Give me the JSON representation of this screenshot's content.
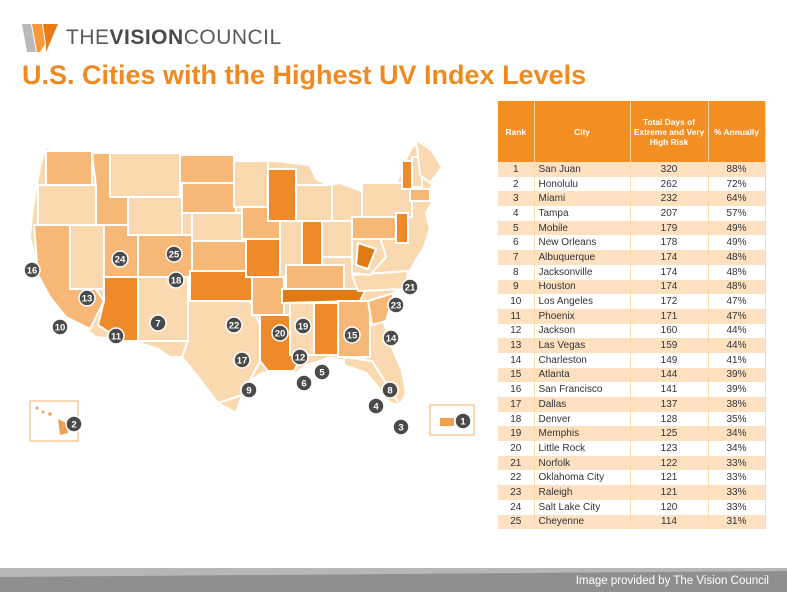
{
  "brand": {
    "prefix": "THE",
    "bold": "VISION",
    "suffix": "COUNCIL"
  },
  "title": "U.S. Cities with the Highest UV Index Levels",
  "credit": "Image provided by The Vision Council",
  "colors": {
    "accent": "#f08a1f",
    "header": "#f28e22",
    "row_band": "#fde1c0",
    "map_light": "#fbd9b0",
    "map_mid": "#f6b777",
    "map_dark": "#ef8a2a",
    "map_darkest": "#e07a14",
    "marker": "#4a4a4a",
    "footer": "#8f8f8f"
  },
  "chart_data": {
    "type": "table",
    "title": "U.S. Cities with the Highest UV Index Levels",
    "columns": [
      "Rank",
      "City",
      "Total Days of Extreme and Very High Risk",
      "% Annually"
    ],
    "rows": [
      [
        "1",
        "San Juan",
        "320",
        "88%"
      ],
      [
        "2",
        "Honolulu",
        "262",
        "72%"
      ],
      [
        "3",
        "Miami",
        "232",
        "64%"
      ],
      [
        "4",
        "Tampa",
        "207",
        "57%"
      ],
      [
        "5",
        "Mobile",
        "179",
        "49%"
      ],
      [
        "6",
        "New Orleans",
        "178",
        "49%"
      ],
      [
        "7",
        "Albuquerque",
        "174",
        "48%"
      ],
      [
        "8",
        "Jacksonville",
        "174",
        "48%"
      ],
      [
        "9",
        "Houston",
        "174",
        "48%"
      ],
      [
        "10",
        "Los Angeles",
        "172",
        "47%"
      ],
      [
        "11",
        "Phoenix",
        "171",
        "47%"
      ],
      [
        "12",
        "Jackson",
        "160",
        "44%"
      ],
      [
        "13",
        "Las Vegas",
        "159",
        "44%"
      ],
      [
        "14",
        "Charleston",
        "149",
        "41%"
      ],
      [
        "15",
        "Atlanta",
        "144",
        "39%"
      ],
      [
        "16",
        "San Francisco",
        "141",
        "39%"
      ],
      [
        "17",
        "Dallas",
        "137",
        "38%"
      ],
      [
        "18",
        "Denver",
        "128",
        "35%"
      ],
      [
        "19",
        "Memphis",
        "125",
        "34%"
      ],
      [
        "20",
        "Little Rock",
        "123",
        "34%"
      ],
      [
        "21",
        "Norfolk",
        "122",
        "33%"
      ],
      [
        "22",
        "Oklahoma City",
        "121",
        "33%"
      ],
      [
        "23",
        "Raleigh",
        "121",
        "33%"
      ],
      [
        "24",
        "Salt Lake City",
        "120",
        "33%"
      ],
      [
        "25",
        "Cheyenne",
        "114",
        "31%"
      ]
    ]
  }
}
